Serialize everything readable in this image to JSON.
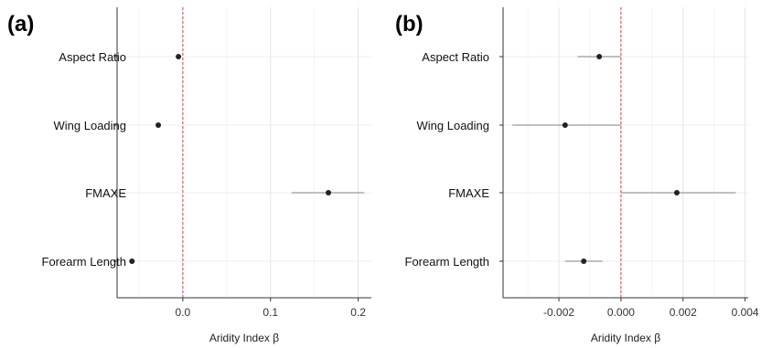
{
  "chart_data": [
    {
      "panel_label": "(a)",
      "type": "scatter",
      "categories": [
        "Aspect Ratio",
        "Wing Loading",
        "FMAXE",
        "Forearm Length"
      ],
      "estimates": [
        -0.005,
        -0.028,
        0.166,
        -0.058
      ],
      "ci_low": [
        -0.007,
        -0.031,
        0.124,
        -0.061
      ],
      "ci_high": [
        -0.003,
        -0.025,
        0.207,
        -0.055
      ],
      "xlabel": "Aridity Index β",
      "xlim": [
        -0.075,
        0.215
      ],
      "xticks": [
        0.0,
        0.1,
        0.2
      ],
      "xtick_labels": [
        "0.0",
        "0.1",
        "0.2"
      ],
      "reference_line": 0,
      "reference_color": "#e8393a",
      "point_color": "#222222",
      "errorbar_color": "#9a9a9a",
      "grid": true
    },
    {
      "panel_label": "(b)",
      "type": "scatter",
      "categories": [
        "Aspect Ratio",
        "Wing Loading",
        "FMAXE",
        "Forearm Length"
      ],
      "estimates": [
        -0.0007,
        -0.0018,
        0.0018,
        -0.0012
      ],
      "ci_low": [
        -0.0014,
        -0.0035,
        0.0,
        -0.0018
      ],
      "ci_high": [
        -0.0,
        -0.0,
        0.0037,
        -0.0006
      ],
      "xlabel": "Aridity Index β",
      "xlim": [
        -0.0038,
        0.0041
      ],
      "xticks": [
        -0.002,
        0.0,
        0.002,
        0.004
      ],
      "xtick_labels": [
        "-0.002",
        "0.000",
        "0.002",
        "0.004"
      ],
      "reference_line": 0,
      "reference_color": "#e8393a",
      "point_color": "#222222",
      "errorbar_color": "#9a9a9a",
      "grid": true
    }
  ]
}
